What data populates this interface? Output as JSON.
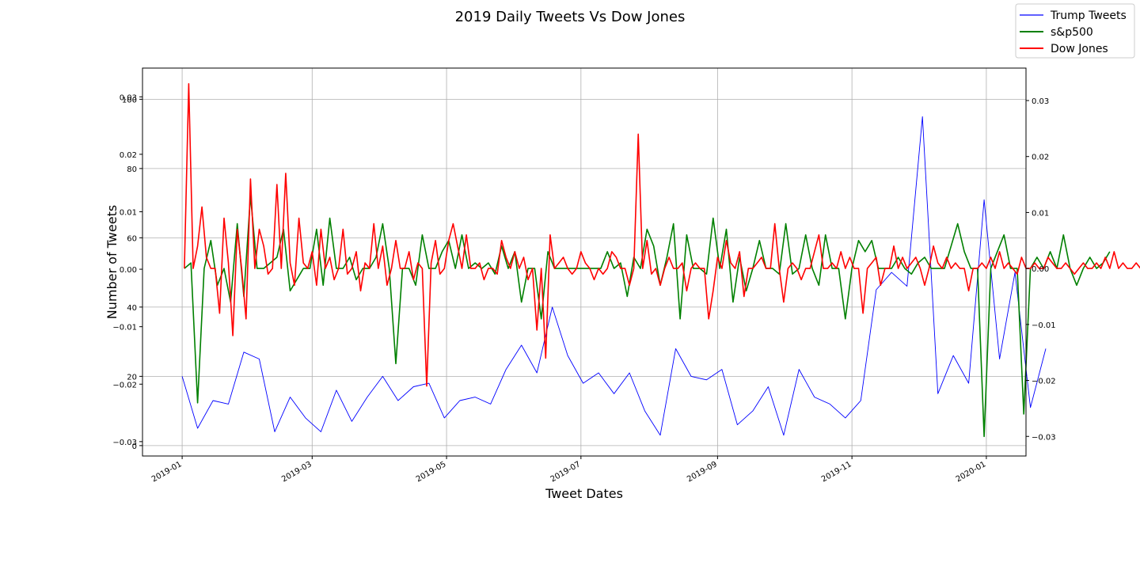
{
  "chart_data": {
    "type": "line",
    "title": "2019 Daily Tweets Vs Dow Jones",
    "xlabel": "Tweet Dates",
    "ylabel": "Number of Tweets",
    "x_range": [
      "2018-12-14",
      "2020-01-19"
    ],
    "x_ticks": [
      "2019-01",
      "2019-03",
      "2019-05",
      "2019-07",
      "2019-09",
      "2019-11",
      "2020-01"
    ],
    "ylim_left_tweets": [
      -3,
      109
    ],
    "left_ticks_tweets": [
      0,
      20,
      40,
      60,
      80,
      100
    ],
    "ylim_left_returns": [
      -0.0325,
      0.035
    ],
    "left_ticks_returns": [
      -0.03,
      -0.02,
      -0.01,
      0.0,
      0.01,
      0.02,
      0.03
    ],
    "ylim_right": [
      -0.0335,
      0.0358
    ],
    "right_ticks": [
      -0.03,
      -0.02,
      -0.01,
      0.0,
      0.01,
      0.02,
      0.03
    ],
    "grid": true,
    "legend_position": "top-right",
    "colors": {
      "trump": "#0000ff",
      "sp500": "#008000",
      "dow": "#ff0000"
    },
    "series": [
      {
        "name": "Trump Tweets",
        "axis": "left",
        "start": "2019-01-01",
        "interval_days": 7,
        "values": [
          20,
          5,
          13,
          12,
          27,
          25,
          4,
          14,
          8,
          4,
          16,
          7,
          14,
          20,
          13,
          17,
          18,
          8,
          13,
          14,
          12,
          22,
          29,
          21,
          40,
          26,
          18,
          21,
          15,
          21,
          10,
          3,
          28,
          20,
          19,
          22,
          6,
          10,
          17,
          3,
          22,
          14,
          12,
          8,
          13,
          45,
          50,
          46,
          95,
          15,
          26,
          18,
          71,
          25,
          50,
          11,
          28
        ]
      },
      {
        "name": "s&p500",
        "axis": "right",
        "start": "2019-01-02",
        "interval_days": 3,
        "values": [
          0.0,
          0.001,
          -0.024,
          0.0,
          0.005,
          -0.003,
          0.0,
          -0.006,
          0.008,
          -0.005,
          0.013,
          0.0,
          0.0,
          0.001,
          0.002,
          0.007,
          -0.004,
          -0.002,
          0.0,
          0.0,
          0.007,
          -0.003,
          0.009,
          0.0,
          0.0,
          0.002,
          -0.002,
          0.0,
          0.0,
          0.002,
          0.008,
          0.0,
          -0.017,
          0.0,
          0.0,
          -0.003,
          0.006,
          0.0,
          0.0,
          0.003,
          0.005,
          0.0,
          0.006,
          0.0,
          0.001,
          0.0,
          0.001,
          -0.001,
          0.004,
          0.0,
          0.003,
          -0.006,
          0.0,
          0.0,
          -0.009,
          0.003,
          0.0,
          0.0,
          0.0,
          0.0,
          0.0,
          0.0,
          0.0,
          0.0,
          0.003,
          0.0,
          0.001,
          -0.005,
          0.002,
          0.0,
          0.007,
          0.004,
          -0.003,
          0.002,
          0.008,
          -0.009,
          0.006,
          0.0,
          0.0,
          -0.001,
          0.009,
          0.0,
          0.007,
          -0.006,
          0.002,
          -0.004,
          0.0,
          0.005,
          0.0,
          0.0,
          -0.001,
          0.008,
          -0.001,
          0.0,
          0.006,
          0.0,
          -0.003,
          0.006,
          0.0,
          0.0,
          -0.009,
          0.0,
          0.005,
          0.003,
          0.005,
          0.0,
          0.0,
          0.0,
          0.002,
          0.0,
          -0.001,
          0.001,
          0.002,
          0.0,
          0.0,
          0.0,
          0.004,
          0.008,
          0.003,
          0.0,
          0.0,
          -0.03,
          0.0,
          0.003,
          0.006,
          0.0,
          0.0,
          -0.026,
          0.0,
          0.002,
          0.0,
          0.003,
          0.0,
          0.006,
          0.0,
          -0.003,
          0.0,
          0.002,
          0.0,
          0.001,
          0.003
        ]
      },
      {
        "name": "Dow Jones",
        "axis": "right",
        "start": "2019-01-02",
        "interval_days": 2,
        "values": [
          0.0,
          0.033,
          0.0,
          0.004,
          0.011,
          0.002,
          0.0,
          0.0,
          -0.008,
          0.009,
          0.001,
          -0.012,
          0.007,
          0.0,
          -0.009,
          0.016,
          0.0,
          0.007,
          0.004,
          -0.001,
          0.0,
          0.015,
          0.0,
          0.017,
          0.001,
          -0.003,
          0.009,
          0.001,
          0.0,
          0.003,
          -0.003,
          0.007,
          0.0,
          0.002,
          -0.002,
          0.0,
          0.007,
          -0.001,
          0.0,
          0.003,
          -0.004,
          0.001,
          0.0,
          0.008,
          0.0,
          0.004,
          -0.003,
          0.0,
          0.005,
          0.0,
          0.0,
          0.003,
          -0.002,
          0.001,
          0.0,
          -0.021,
          0.001,
          0.005,
          -0.001,
          0.0,
          0.005,
          0.008,
          0.004,
          0.0,
          0.006,
          0.0,
          0.0,
          0.001,
          -0.002,
          0.0,
          0.0,
          -0.001,
          0.005,
          0.002,
          0.0,
          0.003,
          0.0,
          0.002,
          -0.002,
          0.0,
          -0.011,
          0.0,
          -0.016,
          0.006,
          0.0,
          0.001,
          0.002,
          0.0,
          -0.001,
          0.0,
          0.003,
          0.001,
          0.0,
          -0.002,
          0.0,
          -0.001,
          0.0,
          0.003,
          0.002,
          0.0,
          0.0,
          -0.003,
          0.0,
          0.024,
          0.0,
          0.005,
          -0.001,
          0.0,
          -0.003,
          0.0,
          0.002,
          0.0,
          0.0,
          0.001,
          -0.004,
          0.0,
          0.001,
          0.0,
          0.0,
          -0.009,
          -0.004,
          0.002,
          0.0,
          0.005,
          0.001,
          0.0,
          0.003,
          -0.005,
          0.0,
          0.0,
          0.001,
          0.002,
          0.0,
          0.0,
          0.008,
          0.0,
          -0.006,
          0.0,
          0.001,
          0.0,
          -0.002,
          0.0,
          0.0,
          0.003,
          0.006,
          0.0,
          0.0,
          0.001,
          0.0,
          0.003,
          0.0,
          0.002,
          0.0,
          0.0,
          -0.008,
          0.0,
          0.001,
          0.002,
          -0.003,
          0.0,
          0.0,
          0.004,
          0.0,
          0.002,
          0.0,
          0.001,
          0.002,
          0.0,
          -0.003,
          0.0,
          0.004,
          0.001,
          0.0,
          0.002,
          0.0,
          0.001,
          0.0,
          0.0,
          -0.004,
          0.0,
          0.0,
          0.001,
          0.0,
          0.002,
          0.0,
          0.003,
          0.0,
          0.001,
          0.0,
          -0.001,
          0.002,
          0.0,
          0.0,
          0.001,
          0.0,
          0.0,
          0.002,
          0.001,
          0.0,
          0.0,
          0.001,
          0.0,
          -0.001,
          0.0,
          0.001,
          0.0,
          0.0,
          0.001,
          0.0,
          0.002,
          0.0,
          0.003,
          0.0,
          0.001,
          0.0,
          0.0,
          0.001,
          0.0,
          0.002,
          0.0,
          0.0,
          0.001,
          0.0,
          0.003,
          0.0,
          0.005,
          0.001,
          0.0,
          0.002,
          0.0,
          0.0,
          0.001,
          0.0,
          -0.001,
          0.0,
          0.002,
          0.0,
          0.0,
          0.001,
          0.0,
          0.0,
          -0.005,
          0.0,
          0.002,
          0.0,
          0.0,
          0.001,
          0.0,
          0.003,
          0.0,
          0.001,
          0.0,
          0.003
        ]
      }
    ]
  }
}
